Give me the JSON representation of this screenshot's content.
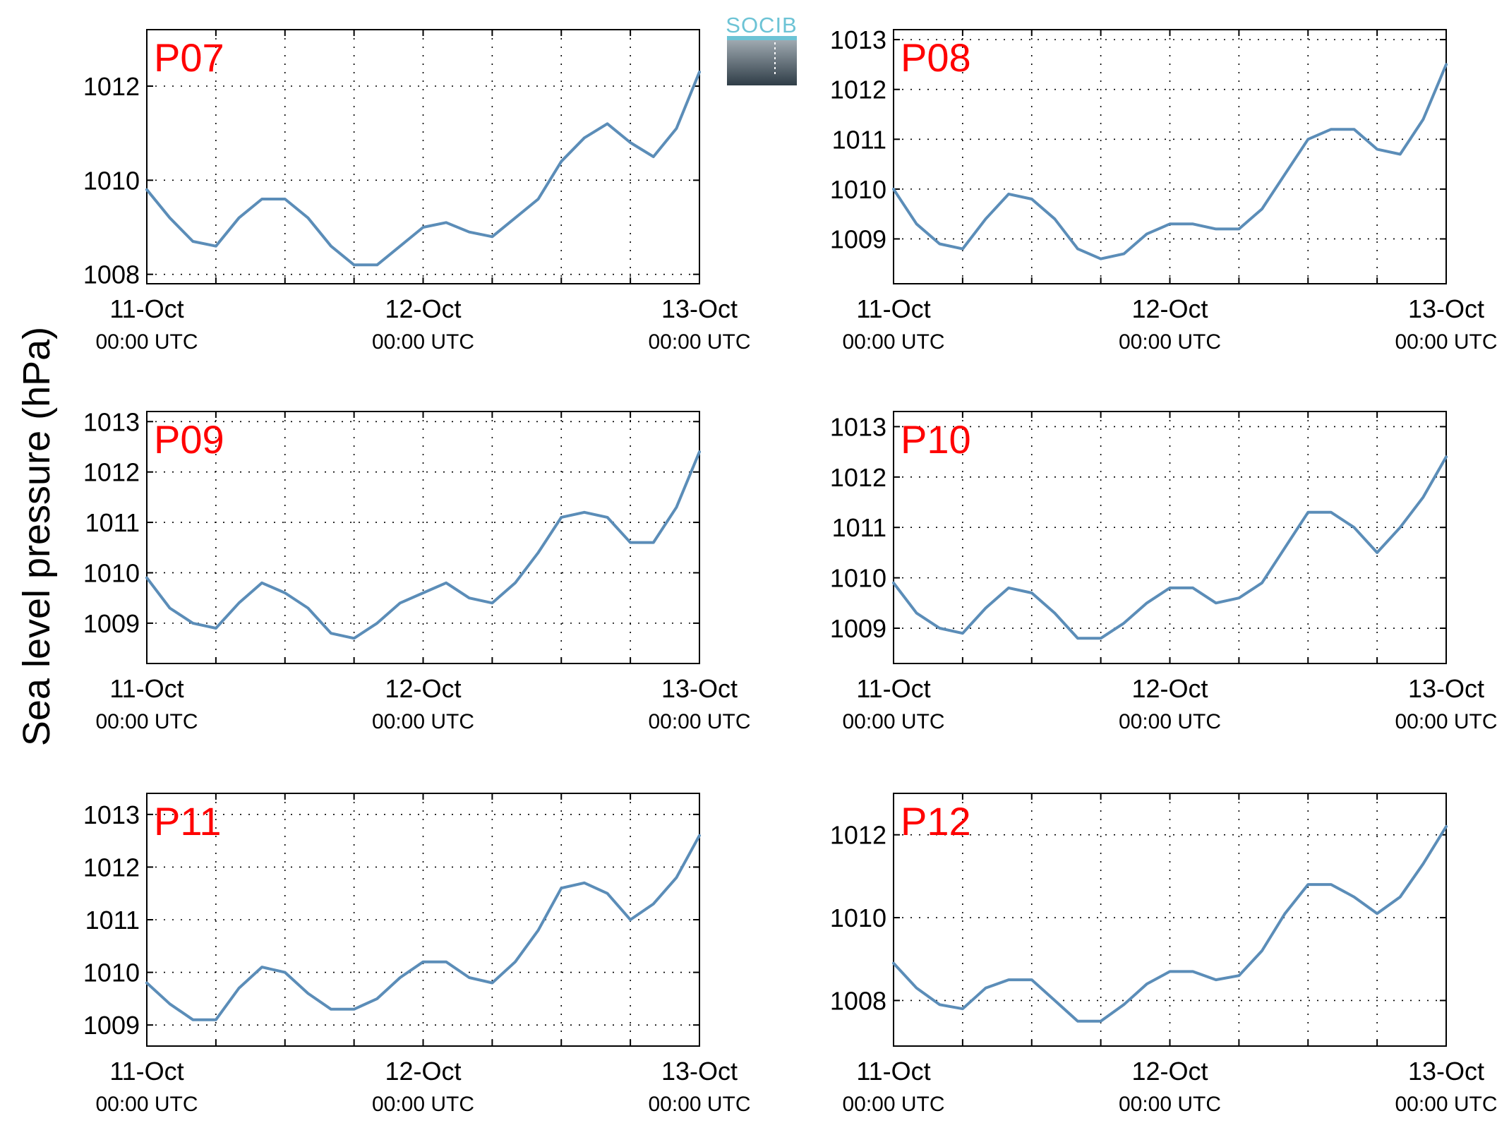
{
  "ylabel": "Sea level pressure (hPa)",
  "logo_text": "SOCIB",
  "colors": {
    "line": "#5b8db8",
    "station": "#ff0000",
    "logo_top": "#6cc3d5",
    "logo_bottom": "#2f3d47"
  },
  "chart_data": [
    {
      "type": "line",
      "title": "P07",
      "x_range": [
        "11-Oct 00:00 UTC",
        "13-Oct 00:00 UTC"
      ],
      "x_ticks": [
        {
          "date": "11-Oct",
          "time": "00:00 UTC"
        },
        {
          "date": "12-Oct",
          "time": "00:00 UTC"
        },
        {
          "date": "13-Oct",
          "time": "00:00 UTC"
        }
      ],
      "ylim": [
        1007.8,
        1013.2
      ],
      "y_ticks": [
        1008,
        1010,
        1012
      ],
      "grid": true,
      "series": [
        {
          "x_hours": [
            0,
            2,
            4,
            6,
            8,
            10,
            12,
            14,
            16,
            18,
            20,
            22,
            24,
            26,
            28,
            30,
            32,
            34,
            36,
            38,
            40,
            42,
            44,
            46,
            48
          ],
          "values": [
            1009.8,
            1009.2,
            1008.7,
            1008.6,
            1009.2,
            1009.6,
            1009.6,
            1009.2,
            1008.6,
            1008.2,
            1008.2,
            1008.6,
            1009.0,
            1009.1,
            1008.9,
            1008.8,
            1009.2,
            1009.6,
            1010.4,
            1010.9,
            1011.2,
            1010.8,
            1010.5,
            1011.1,
            1012.3
          ]
        }
      ]
    },
    {
      "type": "line",
      "title": "P08",
      "x_range": [
        "11-Oct 00:00 UTC",
        "13-Oct 00:00 UTC"
      ],
      "x_ticks": [
        {
          "date": "11-Oct",
          "time": "00:00 UTC"
        },
        {
          "date": "12-Oct",
          "time": "00:00 UTC"
        },
        {
          "date": "13-Oct",
          "time": "00:00 UTC"
        }
      ],
      "ylim": [
        1008.1,
        1013.2
      ],
      "y_ticks": [
        1009,
        1010,
        1011,
        1012,
        1013
      ],
      "grid": true,
      "series": [
        {
          "x_hours": [
            0,
            2,
            4,
            6,
            8,
            10,
            12,
            14,
            16,
            18,
            20,
            22,
            24,
            26,
            28,
            30,
            32,
            34,
            36,
            38,
            40,
            42,
            44,
            46,
            48
          ],
          "values": [
            1010.0,
            1009.3,
            1008.9,
            1008.8,
            1009.4,
            1009.9,
            1009.8,
            1009.4,
            1008.8,
            1008.6,
            1008.7,
            1009.1,
            1009.3,
            1009.3,
            1009.2,
            1009.2,
            1009.6,
            1010.3,
            1011.0,
            1011.2,
            1011.2,
            1010.8,
            1010.7,
            1011.4,
            1012.5
          ]
        }
      ]
    },
    {
      "type": "line",
      "title": "P09",
      "x_range": [
        "11-Oct 00:00 UTC",
        "13-Oct 00:00 UTC"
      ],
      "x_ticks": [
        {
          "date": "11-Oct",
          "time": "00:00 UTC"
        },
        {
          "date": "12-Oct",
          "time": "00:00 UTC"
        },
        {
          "date": "13-Oct",
          "time": "00:00 UTC"
        }
      ],
      "ylim": [
        1008.2,
        1013.2
      ],
      "y_ticks": [
        1009,
        1010,
        1011,
        1012,
        1013
      ],
      "grid": true,
      "series": [
        {
          "x_hours": [
            0,
            2,
            4,
            6,
            8,
            10,
            12,
            14,
            16,
            18,
            20,
            22,
            24,
            26,
            28,
            30,
            32,
            34,
            36,
            38,
            40,
            42,
            44,
            46,
            48
          ],
          "values": [
            1009.9,
            1009.3,
            1009.0,
            1008.9,
            1009.4,
            1009.8,
            1009.6,
            1009.3,
            1008.8,
            1008.7,
            1009.0,
            1009.4,
            1009.6,
            1009.8,
            1009.5,
            1009.4,
            1009.8,
            1010.4,
            1011.1,
            1011.2,
            1011.1,
            1010.6,
            1010.6,
            1011.3,
            1012.4
          ]
        }
      ]
    },
    {
      "type": "line",
      "title": "P10",
      "x_range": [
        "11-Oct 00:00 UTC",
        "13-Oct 00:00 UTC"
      ],
      "x_ticks": [
        {
          "date": "11-Oct",
          "time": "00:00 UTC"
        },
        {
          "date": "12-Oct",
          "time": "00:00 UTC"
        },
        {
          "date": "13-Oct",
          "time": "00:00 UTC"
        }
      ],
      "ylim": [
        1008.3,
        1013.3
      ],
      "y_ticks": [
        1009,
        1010,
        1011,
        1012,
        1013
      ],
      "grid": true,
      "series": [
        {
          "x_hours": [
            0,
            2,
            4,
            6,
            8,
            10,
            12,
            14,
            16,
            18,
            20,
            22,
            24,
            26,
            28,
            30,
            32,
            34,
            36,
            38,
            40,
            42,
            44,
            46,
            48
          ],
          "values": [
            1009.9,
            1009.3,
            1009.0,
            1008.9,
            1009.4,
            1009.8,
            1009.7,
            1009.3,
            1008.8,
            1008.8,
            1009.1,
            1009.5,
            1009.8,
            1009.8,
            1009.5,
            1009.6,
            1009.9,
            1010.6,
            1011.3,
            1011.3,
            1011.0,
            1010.5,
            1011.0,
            1011.6,
            1012.4
          ]
        }
      ]
    },
    {
      "type": "line",
      "title": "P11",
      "x_range": [
        "11-Oct 00:00 UTC",
        "13-Oct 00:00 UTC"
      ],
      "x_ticks": [
        {
          "date": "11-Oct",
          "time": "00:00 UTC"
        },
        {
          "date": "12-Oct",
          "time": "00:00 UTC"
        },
        {
          "date": "13-Oct",
          "time": "00:00 UTC"
        }
      ],
      "ylim": [
        1008.6,
        1013.4
      ],
      "y_ticks": [
        1009,
        1010,
        1011,
        1012,
        1013
      ],
      "grid": true,
      "series": [
        {
          "x_hours": [
            0,
            2,
            4,
            6,
            8,
            10,
            12,
            14,
            16,
            18,
            20,
            22,
            24,
            26,
            28,
            30,
            32,
            34,
            36,
            38,
            40,
            42,
            44,
            46,
            48
          ],
          "values": [
            1009.8,
            1009.4,
            1009.1,
            1009.1,
            1009.7,
            1010.1,
            1010.0,
            1009.6,
            1009.3,
            1009.3,
            1009.5,
            1009.9,
            1010.2,
            1010.2,
            1009.9,
            1009.8,
            1010.2,
            1010.8,
            1011.6,
            1011.7,
            1011.5,
            1011.0,
            1011.3,
            1011.8,
            1012.6
          ]
        }
      ]
    },
    {
      "type": "line",
      "title": "P12",
      "x_range": [
        "11-Oct 00:00 UTC",
        "13-Oct 00:00 UTC"
      ],
      "x_ticks": [
        {
          "date": "11-Oct",
          "time": "00:00 UTC"
        },
        {
          "date": "12-Oct",
          "time": "00:00 UTC"
        },
        {
          "date": "13-Oct",
          "time": "00:00 UTC"
        }
      ],
      "ylim": [
        1006.9,
        1013.0
      ],
      "y_ticks": [
        1008,
        1010,
        1012
      ],
      "grid": true,
      "series": [
        {
          "x_hours": [
            0,
            2,
            4,
            6,
            8,
            10,
            12,
            14,
            16,
            18,
            20,
            22,
            24,
            26,
            28,
            30,
            32,
            34,
            36,
            38,
            40,
            42,
            44,
            46,
            48
          ],
          "values": [
            1008.9,
            1008.3,
            1007.9,
            1007.8,
            1008.3,
            1008.5,
            1008.5,
            1008.0,
            1007.5,
            1007.5,
            1007.9,
            1008.4,
            1008.7,
            1008.7,
            1008.5,
            1008.6,
            1009.2,
            1010.1,
            1010.8,
            1010.8,
            1010.5,
            1010.1,
            1010.5,
            1011.3,
            1012.2
          ]
        }
      ]
    }
  ]
}
